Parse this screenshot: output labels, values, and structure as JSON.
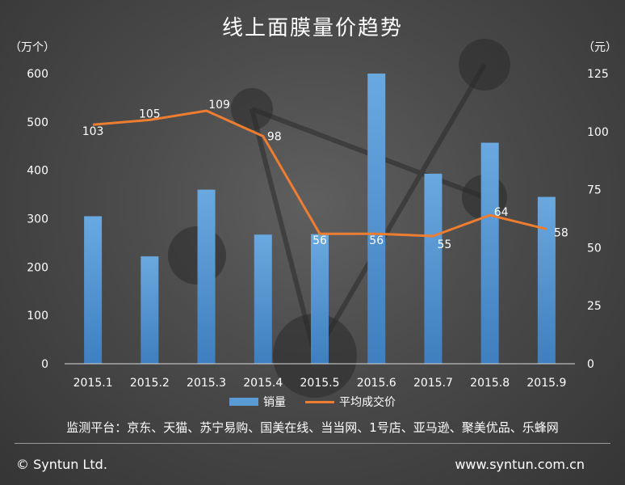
{
  "header": {
    "title": "线上面膜量价趋势",
    "left_unit": "（万个）",
    "right_unit": "（元）"
  },
  "legend": {
    "bar_label": "销量",
    "line_label": "平均成交价"
  },
  "platforms_note": "监测平台：京东、天猫、苏宁易购、国美在线、当当网、1号店、亚马逊、聚美优品、乐蜂网",
  "footer": {
    "copyright": "© Syntun Ltd.",
    "website": "www.syntun.com.cn"
  },
  "colors": {
    "bar": "#5b9bd5",
    "line": "#ed7d31",
    "text": "#ffffff"
  },
  "chart_data": {
    "type": "bar",
    "categories": [
      "2015.1",
      "2015.2",
      "2015.3",
      "2015.4",
      "2015.5",
      "2015.6",
      "2015.7",
      "2015.8",
      "2015.9"
    ],
    "series": [
      {
        "name": "销量",
        "type": "bar",
        "axis": "left",
        "values": [
          305,
          222,
          360,
          267,
          268,
          600,
          393,
          457,
          345
        ]
      },
      {
        "name": "平均成交价",
        "type": "line",
        "axis": "right",
        "values": [
          103,
          105,
          109,
          98,
          56,
          56,
          55,
          64,
          58
        ],
        "labels": [
          "103",
          "105",
          "109",
          "98",
          "56",
          "56",
          "55",
          "64",
          "58"
        ]
      }
    ],
    "y_left": {
      "min": 0,
      "max": 600,
      "ticks": [
        "0",
        "100",
        "200",
        "300",
        "400",
        "500",
        "600"
      ]
    },
    "y_right": {
      "min": 0,
      "max": 125,
      "ticks": [
        "0",
        "25",
        "50",
        "75",
        "100",
        "125"
      ]
    },
    "legend_position": "bottom",
    "grid": false
  }
}
